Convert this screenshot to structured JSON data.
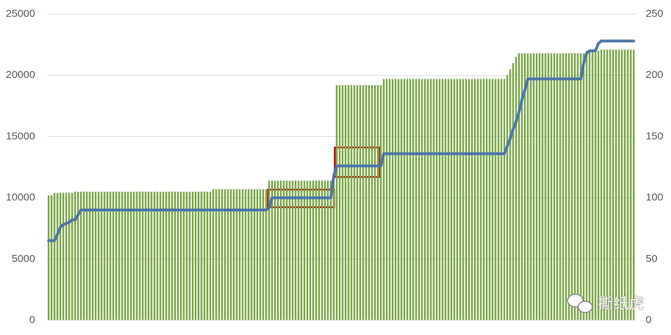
{
  "chart_data": {
    "type": "bar-line",
    "categories": [
      null,
      null,
      null,
      null,
      null,
      null,
      null,
      null,
      null,
      null,
      null,
      null,
      null,
      null,
      null,
      null,
      null,
      null,
      null,
      null,
      null,
      null,
      null,
      null,
      null,
      null,
      null,
      null,
      null,
      null,
      null,
      null,
      null,
      null,
      null,
      null,
      null,
      null,
      null,
      null,
      null,
      null,
      null,
      null,
      null,
      null,
      null,
      null,
      null,
      null,
      null,
      null,
      null,
      null,
      null,
      null,
      null,
      null,
      null,
      null,
      null,
      null,
      null,
      null,
      null,
      null,
      null,
      null,
      null,
      null,
      null,
      null,
      null,
      null,
      null,
      null,
      null,
      null,
      null,
      null,
      null,
      null,
      null,
      null,
      null,
      null,
      null,
      null,
      null,
      null,
      null,
      null,
      null,
      null,
      null,
      null,
      null,
      null,
      null,
      null,
      null,
      null,
      null,
      null,
      null,
      null,
      null,
      null,
      null,
      null,
      null,
      null,
      null,
      null,
      null,
      null,
      null,
      null,
      null,
      null,
      null,
      null,
      null,
      null,
      null,
      null,
      null,
      null,
      null,
      null,
      null,
      null,
      null,
      null,
      null,
      null,
      null,
      null,
      null,
      null,
      null,
      null,
      null,
      null,
      null,
      null,
      null,
      null,
      null,
      null,
      null,
      null,
      null,
      null,
      null,
      null,
      null,
      null,
      null,
      null,
      null,
      null,
      null,
      null,
      null,
      null,
      null,
      null,
      null,
      null,
      null,
      null,
      null,
      null,
      null,
      null,
      null,
      null,
      null,
      null,
      null,
      null,
      null,
      null,
      null,
      null,
      null,
      null,
      null,
      null,
      null,
      null,
      null,
      null,
      null,
      null,
      null,
      null,
      null,
      null
    ],
    "series": [
      {
        "type": "bar",
        "color": "#77a745",
        "values": [
          10200,
          10200,
          10400,
          10400,
          10400,
          10400,
          10400,
          10400,
          10400,
          10500,
          10500,
          10500,
          10500,
          10500,
          10500,
          10500,
          10500,
          10500,
          10500,
          10500,
          10500,
          10500,
          10500,
          10500,
          10500,
          10500,
          10500,
          10500,
          10500,
          10500,
          10500,
          10500,
          10500,
          10500,
          10500,
          10500,
          10500,
          10500,
          10500,
          10500,
          10500,
          10500,
          10500,
          10500,
          10500,
          10500,
          10500,
          10500,
          10500,
          10500,
          10500,
          10500,
          10500,
          10500,
          10500,
          10500,
          10700,
          10700,
          10700,
          10700,
          10700,
          10700,
          10700,
          10700,
          10700,
          10700,
          10700,
          10700,
          10700,
          10700,
          10700,
          10700,
          10700,
          10700,
          10700,
          11400,
          11400,
          11400,
          11400,
          11400,
          11400,
          11400,
          11400,
          11400,
          11400,
          11400,
          11400,
          11400,
          11400,
          11400,
          11400,
          11400,
          11400,
          11400,
          11400,
          11400,
          11400,
          11400,
          19200,
          19200,
          19200,
          19200,
          19200,
          19200,
          19200,
          19200,
          19200,
          19200,
          19200,
          19200,
          19200,
          19200,
          19200,
          19200,
          19700,
          19700,
          19700,
          19700,
          19700,
          19700,
          19700,
          19700,
          19700,
          19700,
          19700,
          19700,
          19700,
          19700,
          19700,
          19700,
          19700,
          19700,
          19700,
          19700,
          19700,
          19700,
          19700,
          19700,
          19700,
          19700,
          19700,
          19700,
          19700,
          19700,
          19700,
          19700,
          19700,
          19700,
          19700,
          19700,
          19700,
          19700,
          19700,
          19700,
          19700,
          19700,
          20000,
          20500,
          21000,
          21500,
          21800,
          21800,
          21800,
          21800,
          21800,
          21800,
          21800,
          21800,
          21800,
          21800,
          21800,
          21800,
          21800,
          21800,
          21800,
          21800,
          21800,
          21800,
          21800,
          21800,
          21800,
          21800,
          21800,
          22000,
          22000,
          22000,
          22000,
          22000,
          22100,
          22100,
          22100,
          22100,
          22100,
          22100,
          22100,
          22100,
          22100,
          22100,
          22100,
          22100
        ]
      },
      {
        "type": "line",
        "axis": "y2",
        "color": "#4a76a8",
        "values": [
          65,
          65,
          65,
          70,
          76,
          78,
          79,
          80,
          82,
          82,
          86,
          90,
          90,
          90,
          90,
          90,
          90,
          90,
          90,
          90,
          90,
          90,
          90,
          90,
          90,
          90,
          90,
          90,
          90,
          90,
          90,
          90,
          90,
          90,
          90,
          90,
          90,
          90,
          90,
          90,
          90,
          90,
          90,
          90,
          90,
          90,
          90,
          90,
          90,
          90,
          90,
          90,
          90,
          90,
          90,
          90,
          90,
          90,
          90,
          90,
          90,
          90,
          90,
          90,
          90,
          90,
          90,
          90,
          90,
          90,
          90,
          90,
          90,
          90,
          90,
          92,
          100,
          100,
          100,
          100,
          100,
          100,
          100,
          100,
          100,
          100,
          100,
          100,
          100,
          100,
          100,
          100,
          100,
          100,
          100,
          100,
          100,
          118,
          126,
          126,
          126,
          126,
          126,
          126,
          126,
          126,
          126,
          126,
          126,
          126,
          126,
          126,
          126,
          126,
          136,
          136,
          136,
          136,
          136,
          136,
          136,
          136,
          136,
          136,
          136,
          136,
          136,
          136,
          136,
          136,
          136,
          136,
          136,
          136,
          136,
          136,
          136,
          136,
          136,
          136,
          136,
          136,
          136,
          136,
          136,
          136,
          136,
          136,
          136,
          136,
          136,
          136,
          136,
          136,
          136,
          136,
          142,
          148,
          156,
          162,
          170,
          180,
          188,
          197,
          197,
          197,
          197,
          197,
          197,
          197,
          197,
          197,
          197,
          197,
          197,
          197,
          197,
          197,
          197,
          197,
          197,
          197,
          210,
          218,
          220,
          220,
          220,
          226,
          228,
          228,
          228,
          228,
          228,
          228,
          228,
          228,
          228,
          228,
          228,
          228
        ]
      }
    ],
    "ylim": [
      0,
      25000
    ],
    "yticks": [
      0,
      5000,
      10000,
      15000,
      20000,
      25000
    ],
    "y2lim": [
      0,
      250
    ],
    "y2ticks": [
      0,
      50,
      100,
      150,
      200,
      250
    ],
    "grid": true,
    "watermark": "撕纸虎"
  }
}
